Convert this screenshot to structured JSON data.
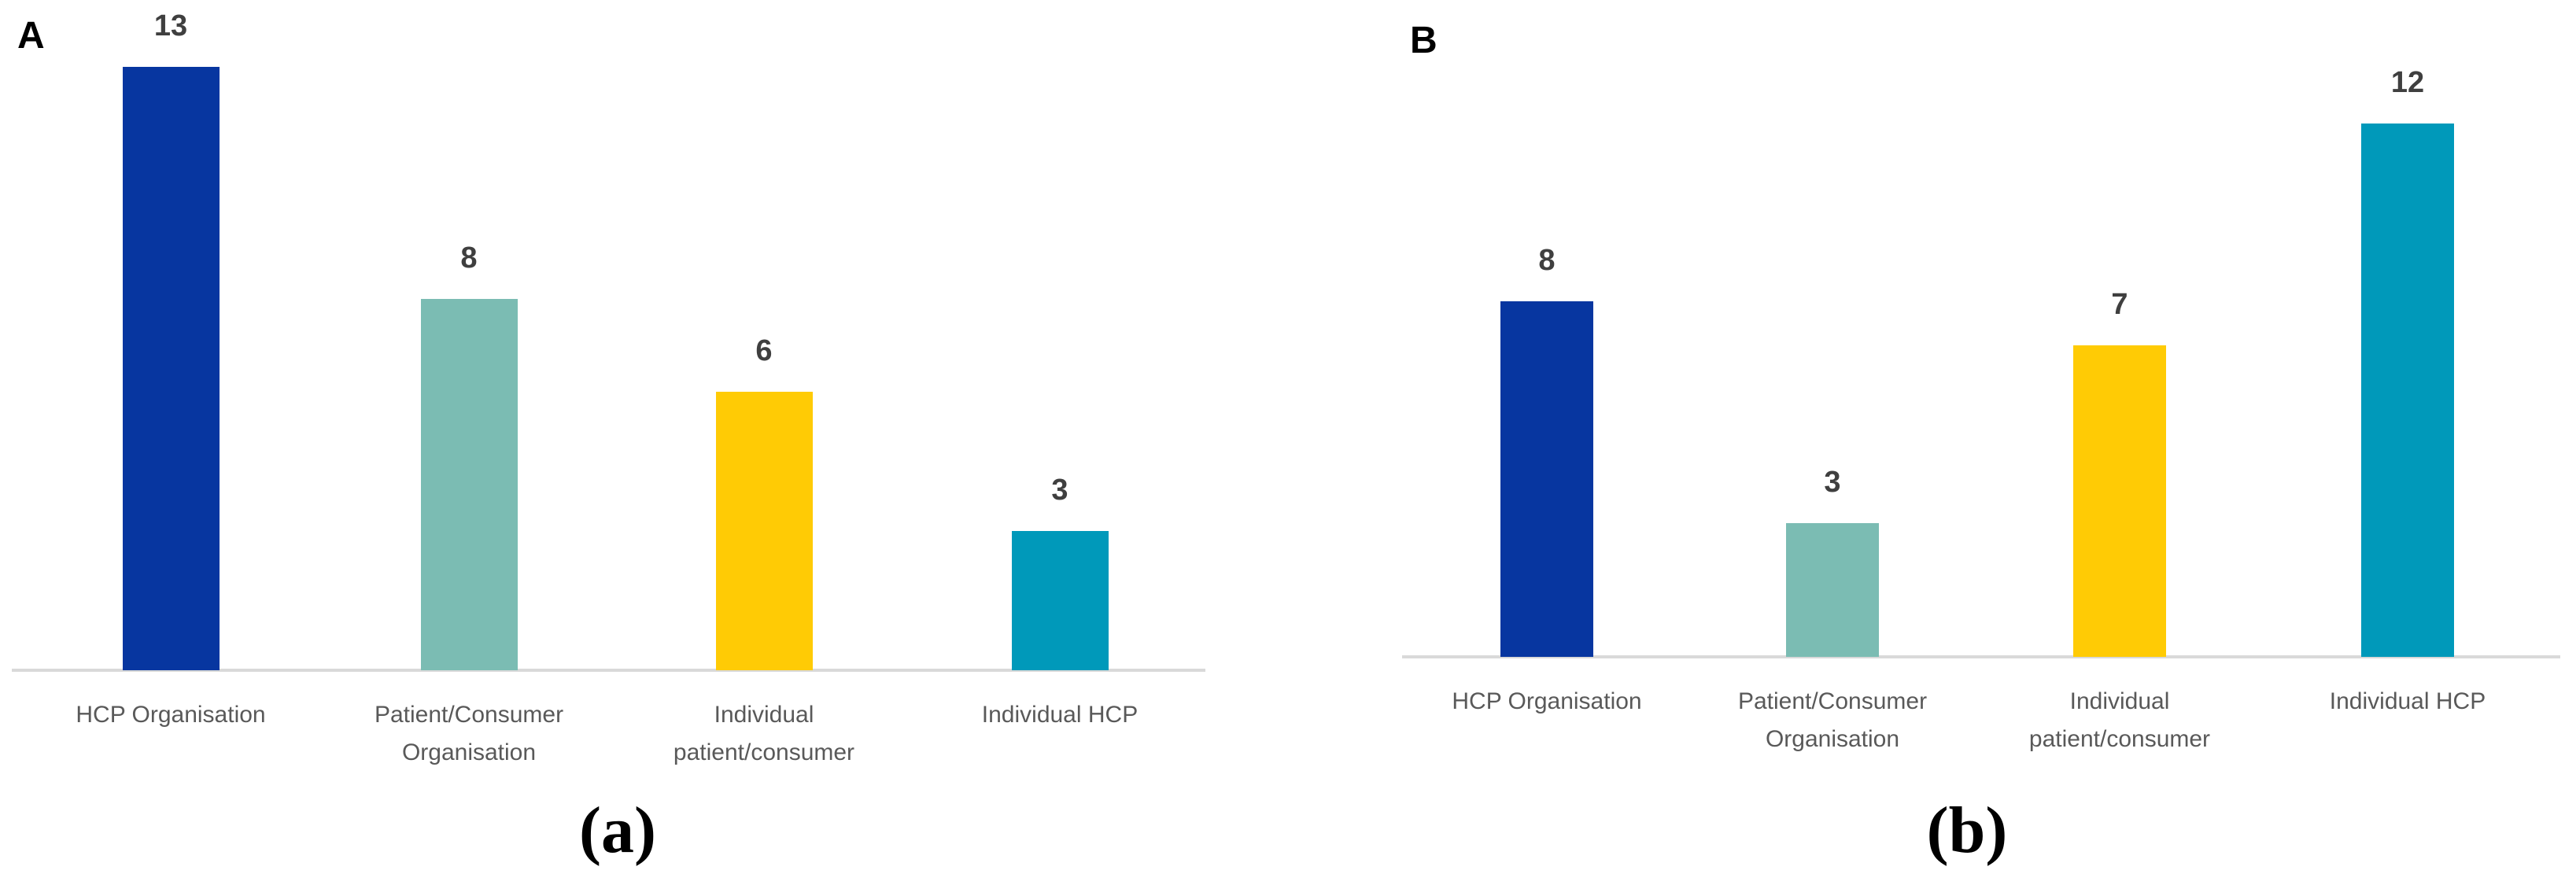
{
  "figure": {
    "background": "#ffffff",
    "style": {
      "axis_line_color": "#D9D9D9",
      "value_label_color": "#3F3F3F",
      "category_label_color": "#595959",
      "panel_letter_color": "#000000",
      "caption_color": "#000000"
    }
  },
  "chart_data": [
    {
      "type": "bar",
      "panel_letter": "A",
      "caption": "(a)",
      "title": "",
      "xlabel": "",
      "ylabel": "",
      "categories": [
        "HCP Organisation",
        "Patient/Consumer Organisation",
        "Individual patient/consumer",
        "Individual HCP"
      ],
      "category_label_lines": [
        [
          "HCP Organisation"
        ],
        [
          "Patient/Consumer",
          "Organisation"
        ],
        [
          "Individual",
          "patient/consumer"
        ],
        [
          "Individual HCP"
        ]
      ],
      "values": [
        13,
        8,
        6,
        3
      ],
      "bar_colors": [
        "#0736A0",
        "#7BBCB3",
        "#FFCB05",
        "#0099BA"
      ],
      "data_labels": [
        "13",
        "8",
        "6",
        "3"
      ],
      "data_labels_shown": true,
      "ylim": [
        0,
        14
      ],
      "y_axis_visible": false,
      "gridlines": false,
      "legend": "none",
      "x_axis_baseline_visible": true
    },
    {
      "type": "bar",
      "panel_letter": "B",
      "caption": "(b)",
      "title": "",
      "xlabel": "",
      "ylabel": "",
      "categories": [
        "HCP Organisation",
        "Patient/Consumer Organisation",
        "Individual patient/consumer",
        "Individual HCP"
      ],
      "category_label_lines": [
        [
          "HCP Organisation"
        ],
        [
          "Patient/Consumer",
          "Organisation"
        ],
        [
          "Individual",
          "patient/consumer"
        ],
        [
          "Individual HCP"
        ]
      ],
      "values": [
        8,
        3,
        7,
        12
      ],
      "bar_colors": [
        "#0736A0",
        "#7BBCB3",
        "#FFCB05",
        "#0099BA"
      ],
      "data_labels": [
        "8",
        "3",
        "7",
        "12"
      ],
      "data_labels_shown": true,
      "ylim": [
        0,
        13
      ],
      "y_axis_visible": false,
      "gridlines": false,
      "legend": "none",
      "x_axis_baseline_visible": true
    }
  ]
}
